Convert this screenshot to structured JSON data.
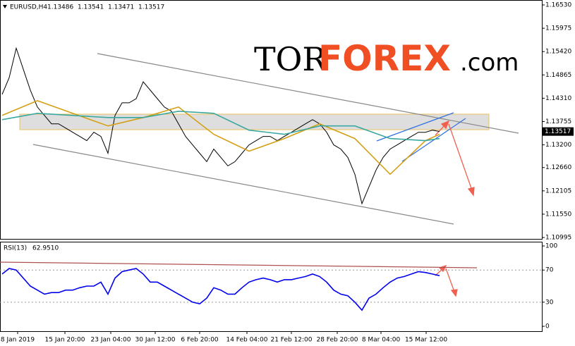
{
  "header": {
    "symbol": "EURUSD,H4",
    "ohlc": [
      1.13486,
      1.13541,
      1.13471,
      1.13517
    ]
  },
  "logo": {
    "part1": "TOR",
    "part2": "FOREX",
    "part3": ".com"
  },
  "chart_data": [
    {
      "type": "line",
      "last_price": 1.13517,
      "x": [
        0,
        1,
        2,
        3,
        4,
        5,
        6,
        7,
        8,
        9,
        10,
        11,
        12,
        13,
        14,
        15,
        16,
        17,
        18,
        19,
        20,
        21,
        22,
        23,
        24,
        25,
        26,
        27,
        28,
        29,
        30,
        31,
        32,
        33,
        34,
        35,
        36,
        37,
        38,
        39,
        40,
        41,
        42,
        43,
        44,
        45,
        46,
        47,
        48,
        49,
        50,
        51,
        52,
        53,
        54,
        55,
        56,
        57,
        58,
        59,
        60,
        61,
        62
      ],
      "xlim": [
        -0.3,
        76.5
      ],
      "ylim": [
        1.10945,
        1.16614
      ],
      "yticks": [
        {
          "value": 1.1653,
          "label": "1.16530"
        },
        1.15975,
        {
          "value": 1.1542,
          "label": "1.15420"
        },
        1.14865,
        {
          "value": 1.1431,
          "label": "1.14310"
        },
        1.13755,
        {
          "value": 1.132,
          "label": "1.13200"
        },
        {
          "value": 1.1266,
          "label": "1.12660"
        },
        1.12105,
        {
          "value": 1.1155,
          "label": "1.11550"
        },
        1.10995
      ],
      "series": [
        {
          "name": "EURUSD",
          "color": "#000000",
          "values": [
            1.144,
            1.148,
            1.155,
            1.15,
            1.145,
            1.141,
            1.139,
            1.137,
            1.137,
            1.136,
            1.135,
            1.134,
            1.133,
            1.135,
            1.134,
            1.13,
            1.139,
            1.142,
            1.142,
            1.143,
            1.147,
            1.145,
            1.143,
            1.141,
            1.14,
            1.137,
            1.134,
            1.132,
            1.13,
            1.128,
            1.131,
            1.129,
            1.127,
            1.128,
            1.13,
            1.132,
            1.133,
            1.134,
            1.134,
            1.133,
            1.134,
            1.135,
            1.136,
            1.137,
            1.138,
            1.137,
            1.135,
            1.132,
            1.131,
            1.129,
            1.125,
            1.118,
            1.122,
            1.126,
            1.129,
            1.131,
            1.132,
            1.133,
            1.134,
            1.135,
            1.135,
            1.1355,
            1.1352
          ]
        },
        {
          "color": "#d4a017",
          "x": [
            0,
            5,
            10,
            15,
            20,
            25,
            30,
            35,
            40,
            45,
            50,
            55,
            60,
            62
          ],
          "values": [
            1.139,
            1.1425,
            1.1395,
            1.1365,
            1.1385,
            1.141,
            1.1345,
            1.1305,
            1.1335,
            1.137,
            1.1335,
            1.125,
            1.133,
            1.1345
          ]
        },
        {
          "color": "#3aa8a0",
          "x": [
            0,
            5,
            10,
            15,
            20,
            25,
            30,
            35,
            40,
            45,
            50,
            55,
            60,
            62
          ],
          "values": [
            1.138,
            1.1395,
            1.139,
            1.1385,
            1.1385,
            1.14,
            1.1395,
            1.1355,
            1.1345,
            1.1365,
            1.1365,
            1.1335,
            1.133,
            1.1335
          ]
        }
      ]
    },
    {
      "type": "line",
      "indicator": "RSI(13)",
      "indicator_value": 62.951,
      "indicator_value_label": "62.9510",
      "x": [
        0,
        1,
        2,
        3,
        4,
        5,
        6,
        7,
        8,
        9,
        10,
        11,
        12,
        13,
        14,
        15,
        16,
        17,
        18,
        19,
        20,
        21,
        22,
        23,
        24,
        25,
        26,
        27,
        28,
        29,
        30,
        31,
        32,
        33,
        34,
        35,
        36,
        37,
        38,
        39,
        40,
        41,
        42,
        43,
        44,
        45,
        46,
        47,
        48,
        49,
        50,
        51,
        52,
        53,
        54,
        55,
        56,
        57,
        58,
        59,
        60,
        61,
        62
      ],
      "xlim": [
        -0.3,
        76.5
      ],
      "ylim": [
        -6.1,
        105.3
      ],
      "yticks": [
        100,
        70,
        30,
        0
      ],
      "xticks": [
        {
          "value": 2.2,
          "label": "8 Jan 2019"
        },
        {
          "value": 8.9,
          "label": "15 Jan 20:00"
        },
        {
          "value": 15.4,
          "label": "23 Jan 04:00"
        },
        {
          "value": 21.7,
          "label": "30 Jan 12:00"
        },
        {
          "value": 28,
          "label": "6 Feb 20:00"
        },
        {
          "value": 34.7,
          "label": "14 Feb 04:00"
        },
        {
          "value": 41,
          "label": "21 Feb 12:00"
        },
        {
          "value": 47.5,
          "label": "28 Feb 20:00"
        },
        {
          "value": 53.7,
          "label": "8 Mar 04:00"
        },
        {
          "value": 60.1,
          "label": "15 Mar 12:00"
        }
      ],
      "series": [
        {
          "color": "#0000ee",
          "values": [
            65,
            72,
            70,
            60,
            50,
            45,
            40,
            42,
            42,
            45,
            45,
            48,
            50,
            50,
            55,
            40,
            60,
            68,
            70,
            72,
            65,
            55,
            55,
            50,
            45,
            40,
            35,
            30,
            28,
            35,
            48,
            45,
            40,
            40,
            48,
            55,
            58,
            60,
            58,
            55,
            58,
            58,
            60,
            62,
            65,
            62,
            55,
            45,
            40,
            38,
            30,
            20,
            35,
            40,
            48,
            55,
            60,
            62,
            65,
            68,
            67,
            65,
            63
          ]
        }
      ]
    }
  ]
}
